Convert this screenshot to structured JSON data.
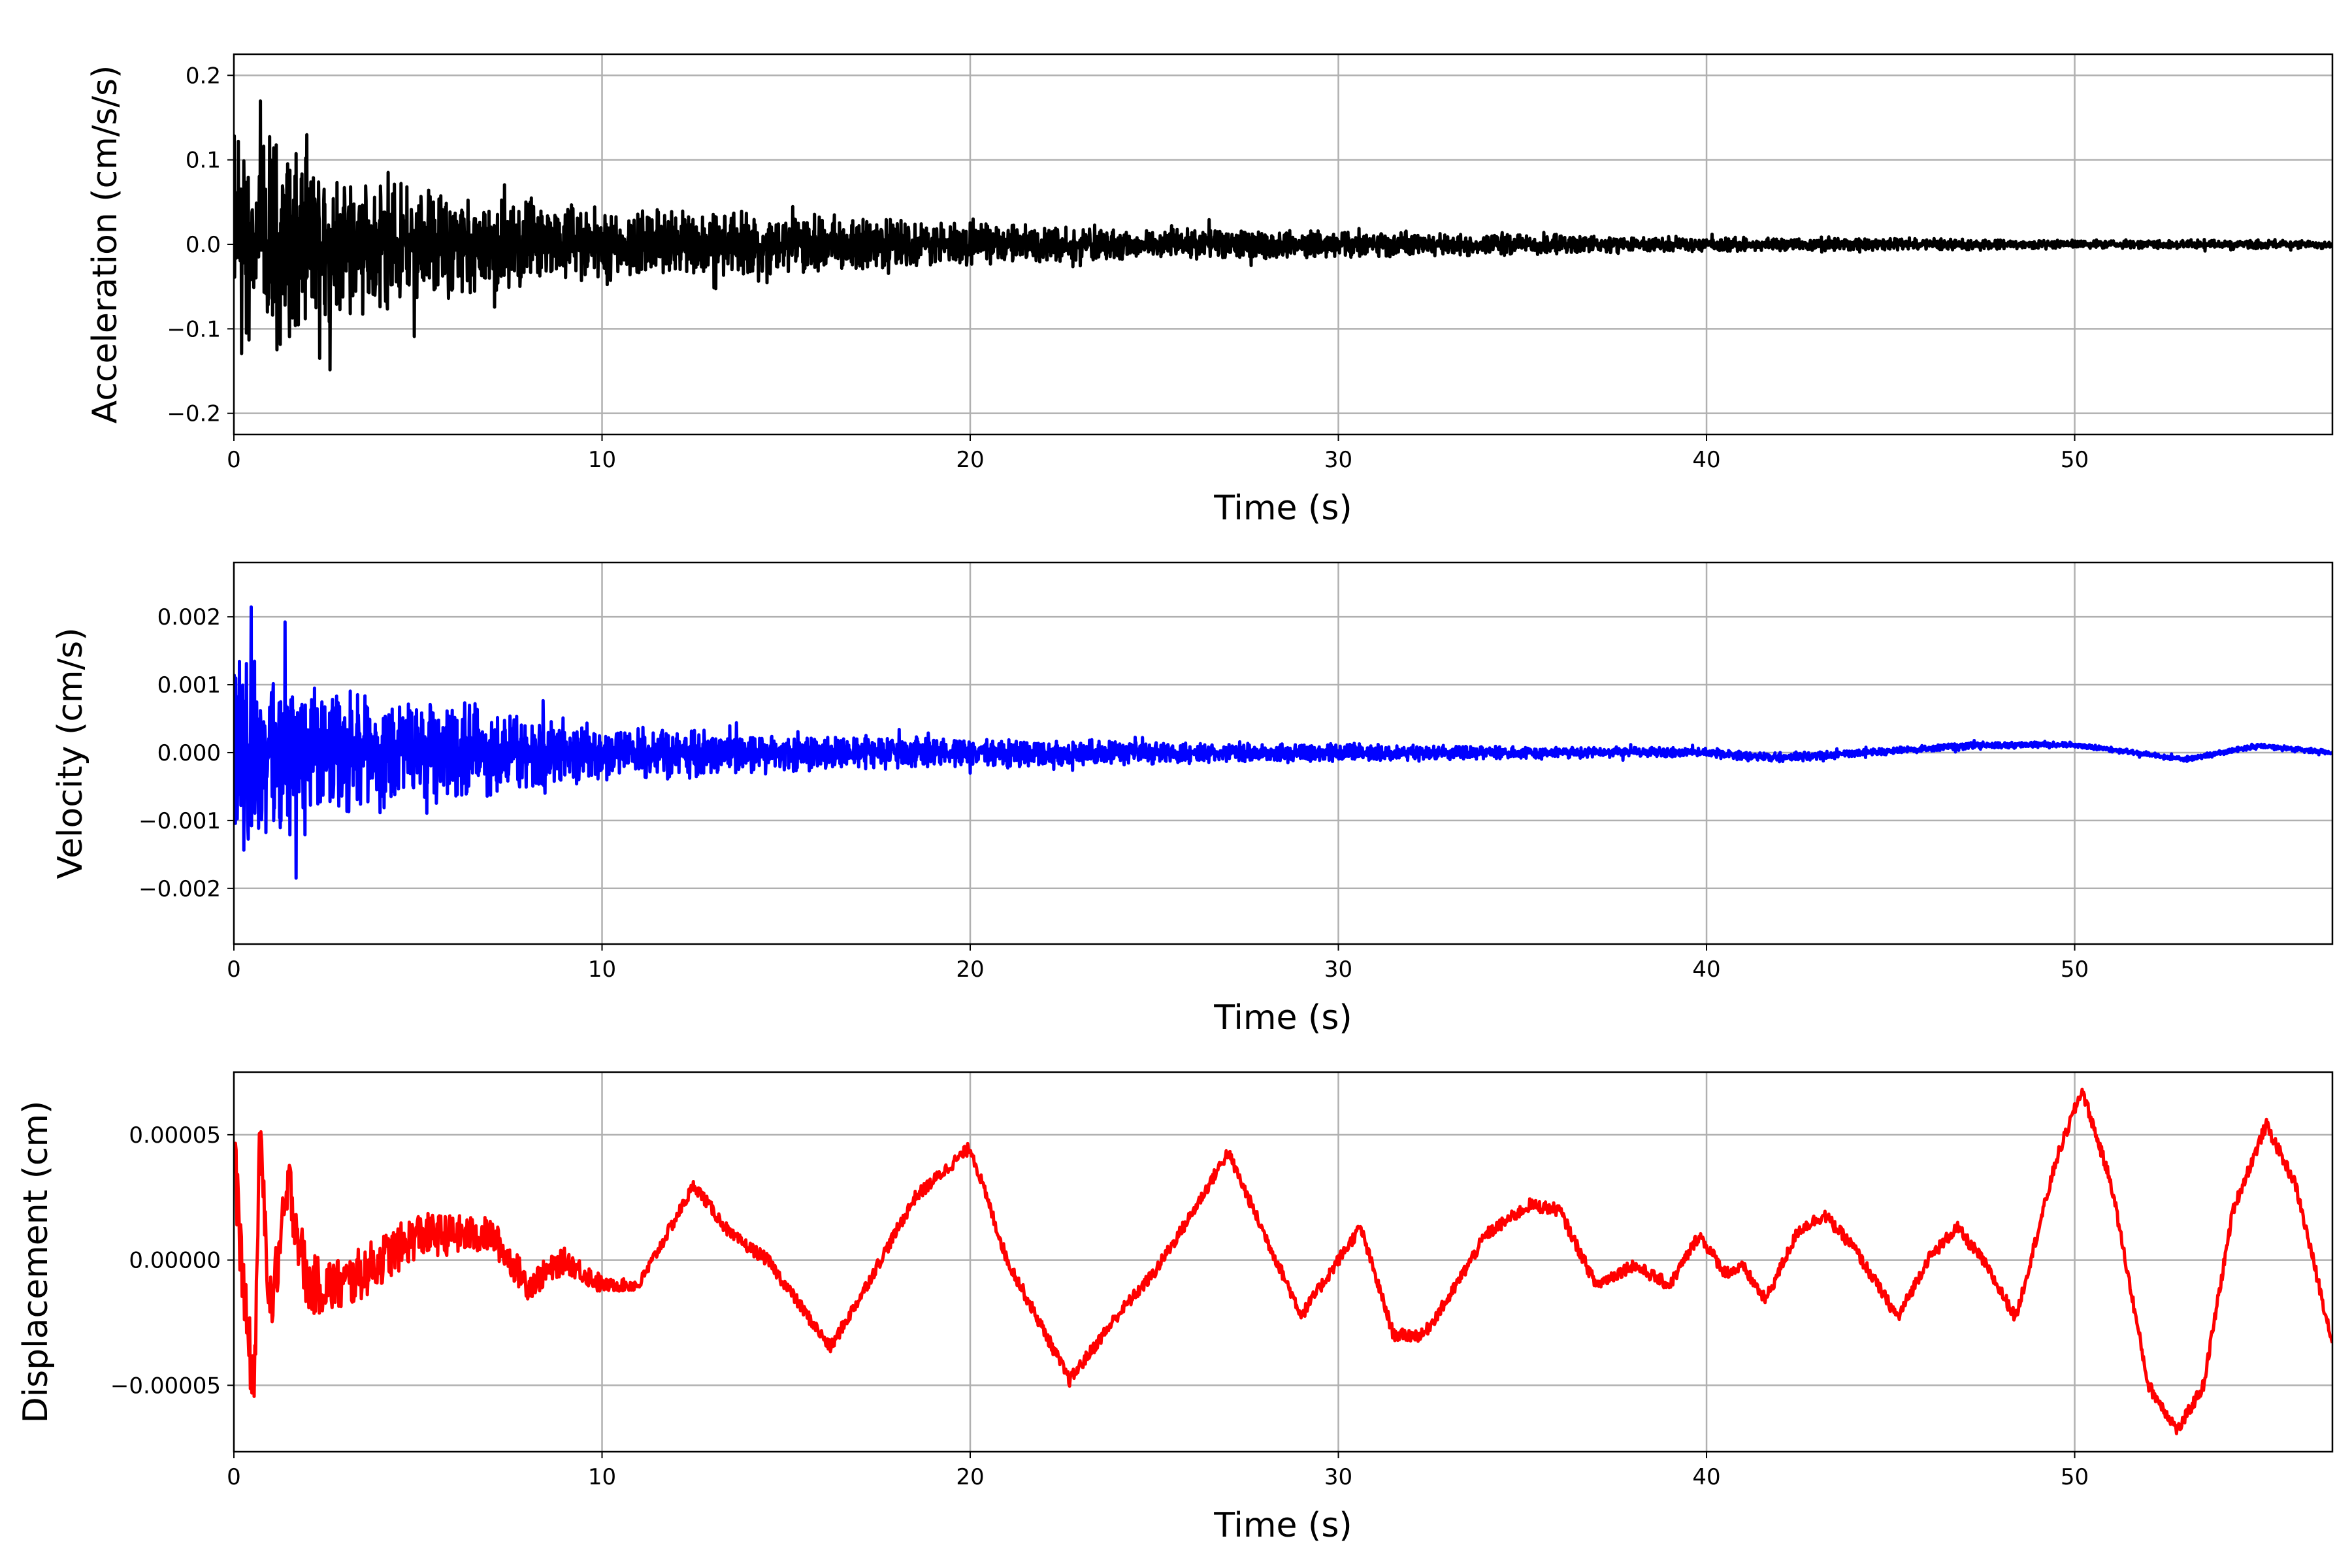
{
  "chart_data": [
    {
      "type": "line",
      "title": "",
      "xlabel": "Time (s)",
      "ylabel": "Acceleration (cm/s/s)",
      "xlim": [
        0,
        57
      ],
      "ylim": [
        -0.225,
        0.225
      ],
      "xticks": [
        0,
        10,
        20,
        30,
        40,
        50
      ],
      "xtick_labels": [
        "0",
        "10",
        "20",
        "30",
        "40",
        "50"
      ],
      "yticks": [
        -0.2,
        -0.1,
        0.0,
        0.1,
        0.2
      ],
      "ytick_labels": [
        "−0.2",
        "−0.1",
        "0.0",
        "0.1",
        "0.2"
      ],
      "grid": true,
      "color": "#000000",
      "series": [
        {
          "name": "acceleration",
          "kind": "noise-envelope",
          "t": [
            0,
            1,
            2,
            3,
            5,
            8,
            10,
            15,
            20,
            25,
            30,
            35,
            40,
            45,
            50,
            57
          ],
          "amplitude": [
            0.2,
            0.19,
            0.15,
            0.12,
            0.1,
            0.08,
            0.065,
            0.05,
            0.035,
            0.028,
            0.022,
            0.018,
            0.012,
            0.01,
            0.008,
            0.007
          ]
        }
      ]
    },
    {
      "type": "line",
      "title": "",
      "xlabel": "Time (s)",
      "ylabel": "Velocity (cm/s)",
      "xlim": [
        0,
        57
      ],
      "ylim": [
        -0.00282,
        0.0028
      ],
      "xticks": [
        0,
        10,
        20,
        30,
        40,
        50
      ],
      "xtick_labels": [
        "0",
        "10",
        "20",
        "30",
        "40",
        "50"
      ],
      "yticks": [
        -0.002,
        -0.001,
        0.0,
        0.001,
        0.002
      ],
      "ytick_labels": [
        "−0.002",
        "−0.001",
        "0.000",
        "0.001",
        "0.002"
      ],
      "grid": true,
      "color": "#0000ff",
      "series": [
        {
          "name": "velocity",
          "kind": "noise-envelope",
          "t": [
            0,
            1,
            2,
            3,
            5,
            8,
            10,
            15,
            20,
            25,
            30,
            35,
            40,
            45,
            50,
            57
          ],
          "amplitude": [
            0.0024,
            0.0021,
            0.0016,
            0.0013,
            0.0011,
            0.0009,
            0.0006,
            0.0004,
            0.0003,
            0.00025,
            0.0002,
            0.00013,
            0.0001,
            8e-05,
            6e-05,
            5e-05
          ],
          "drift_t": [
            0,
            40,
            42,
            45,
            47,
            50,
            53,
            55,
            57
          ],
          "drift": [
            0,
            0,
            -8e-05,
            2e-05,
            0.0001,
            0.00012,
            -0.0001,
            0.0001,
            0.0
          ]
        }
      ]
    },
    {
      "type": "line",
      "title": "",
      "xlabel": "Time (s)",
      "ylabel": "Displacement (cm)",
      "xlim": [
        0,
        57
      ],
      "ylim": [
        -7.65e-05,
        7.5e-05
      ],
      "xticks": [
        0,
        10,
        20,
        30,
        40,
        50
      ],
      "xtick_labels": [
        "0",
        "10",
        "20",
        "30",
        "40",
        "50"
      ],
      "yticks": [
        -5e-05,
        0.0,
        5e-05
      ],
      "ytick_labels": [
        "−0.00005",
        "0.00000",
        "0.00005"
      ],
      "grid": true,
      "color": "#ff0000",
      "series": [
        {
          "name": "displacement",
          "t": [
            0,
            0.3,
            0.55,
            0.7,
            1.0,
            1.5,
            2,
            3,
            4,
            5,
            6,
            7,
            8,
            9,
            10,
            11,
            12.5,
            13.5,
            14.5,
            16.2,
            17,
            18.5,
            20,
            21,
            22.7,
            24,
            25,
            26,
            27,
            28,
            29,
            30,
            30.6,
            31.5,
            32.3,
            33,
            34,
            35.2,
            36,
            37,
            38,
            39,
            39.8,
            40.5,
            41,
            41.6,
            42.5,
            43.2,
            44,
            45.2,
            46,
            46.8,
            47.5,
            48.4,
            49.5,
            50.2,
            51,
            52,
            52.8,
            53.5,
            54.3,
            55.2,
            56,
            57
          ],
          "values": [
            4.4e-05,
            -2e-05,
            -5.2e-05,
            4.7e-05,
            -2e-05,
            3e-05,
            -1e-05,
            -1e-05,
            0.0,
            1e-05,
            1e-05,
            1e-05,
            -1e-05,
            0.0,
            -1e-05,
            -1e-05,
            3e-05,
            1e-05,
            0.0,
            -3.5e-05,
            -1.5e-05,
            2.5e-05,
            4.5e-05,
            0.0,
            -4.8e-05,
            -2.2e-05,
            -5e-06,
            1.8e-05,
            4.3e-05,
            1e-05,
            -2.2e-05,
            0.0,
            1.3e-05,
            -3e-05,
            -3e-05,
            -1.5e-05,
            1e-05,
            2.2e-05,
            2e-05,
            -1e-05,
            -2e-06,
            -1e-05,
            1e-05,
            -5e-06,
            -3e-06,
            -1.6e-05,
            1.2e-05,
            1.8e-05,
            5e-06,
            -2.3e-05,
            0.0,
            1.3e-05,
            0.0,
            -2.3e-05,
            4e-05,
            6.8e-05,
            3e-05,
            -5e-05,
            -6.8e-05,
            -5e-05,
            2e-05,
            5.4e-05,
            3e-05,
            -3.3e-05
          ]
        }
      ]
    }
  ]
}
